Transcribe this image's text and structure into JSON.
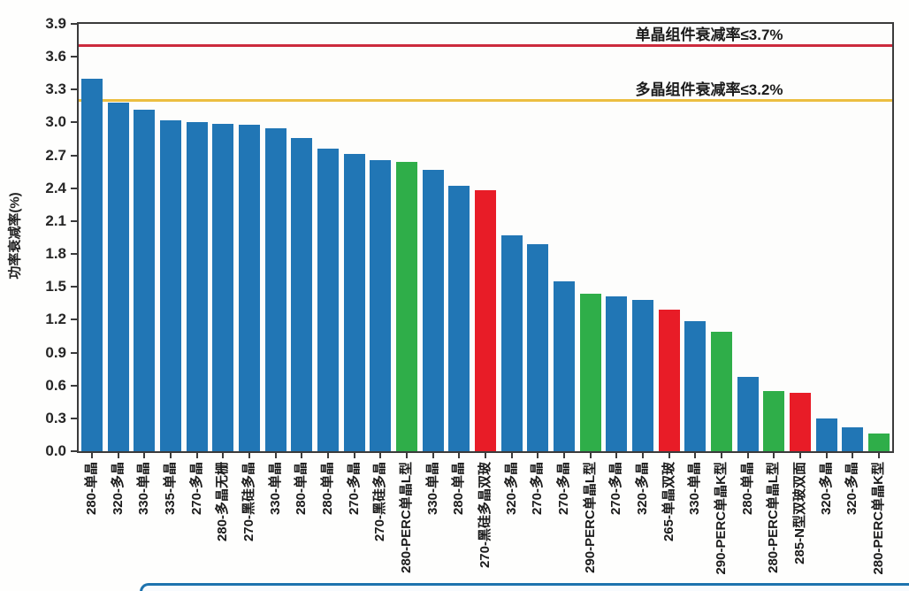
{
  "chart_data": {
    "type": "bar",
    "title": "",
    "ylabel": "功率衰减率(%)",
    "ylim": [
      0,
      3.9
    ],
    "ytick_step": 0.3,
    "yticks": [
      "0.0",
      "0.3",
      "0.6",
      "0.9",
      "1.2",
      "1.5",
      "1.8",
      "2.1",
      "2.4",
      "2.7",
      "3.0",
      "3.3",
      "3.6",
      "3.9"
    ],
    "grid": "off",
    "legend": "none",
    "categories": [
      "280-单晶",
      "320-多晶",
      "330-单晶",
      "335-单晶",
      "270-多晶",
      "280-多晶无栅",
      "270-黑硅多晶",
      "330-单晶",
      "280-单晶",
      "280-单晶",
      "270-多晶",
      "270-黑硅多晶",
      "280-PERC单晶L型",
      "330-单晶",
      "280-单晶",
      "270-黑硅多晶双玻",
      "320-多晶",
      "270-多晶",
      "270-多晶",
      "290-PERC单晶L型",
      "270-多晶",
      "320-多晶",
      "265-单晶双玻",
      "330-单晶",
      "290-PERC单晶K型",
      "280-单晶",
      "280-PERC单晶L型",
      "285-N型双玻双面",
      "320-多晶",
      "320-多晶",
      "280-PERC单晶K型"
    ],
    "values": [
      3.4,
      3.18,
      3.12,
      3.02,
      3.0,
      2.99,
      2.98,
      2.95,
      2.86,
      2.76,
      2.71,
      2.66,
      2.64,
      2.57,
      2.42,
      2.38,
      1.97,
      1.89,
      1.55,
      1.44,
      1.41,
      1.38,
      1.29,
      1.19,
      1.09,
      0.68,
      0.55,
      0.53,
      0.3,
      0.22,
      0.16
    ],
    "colors": [
      "blue",
      "blue",
      "blue",
      "blue",
      "blue",
      "blue",
      "blue",
      "blue",
      "blue",
      "blue",
      "blue",
      "blue",
      "green",
      "blue",
      "blue",
      "red",
      "blue",
      "blue",
      "blue",
      "green",
      "blue",
      "blue",
      "red",
      "blue",
      "green",
      "blue",
      "green",
      "red",
      "blue",
      "blue",
      "green"
    ],
    "bar_colors": {
      "blue": "#2176b5",
      "green": "#2fae49",
      "red": "#e81c27"
    },
    "reference_lines": [
      {
        "label": "单晶组件衰减率≤3.7%",
        "value": 3.7,
        "color": "#cc2b3d"
      },
      {
        "label": "多晶组件衰减率≤3.2%",
        "value": 3.2,
        "color": "#ecbe41"
      }
    ],
    "axis_color": "#3b3b3b"
  }
}
